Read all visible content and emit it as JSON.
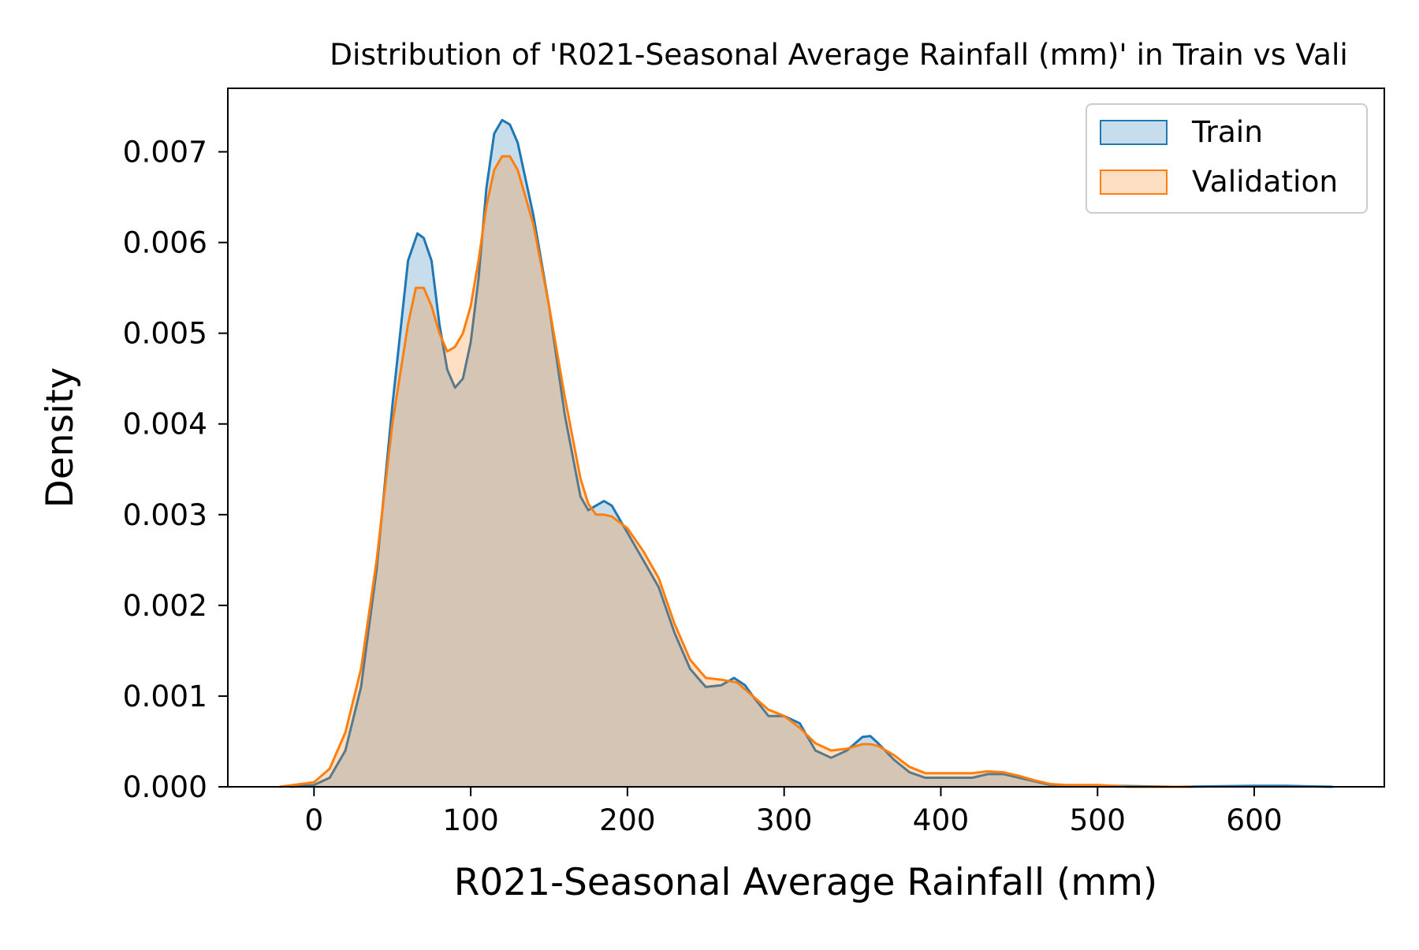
{
  "chart_data": {
    "type": "area",
    "title": "Distribution of 'R021-Seasonal Average Rainfall (mm)' in Train vs Vali",
    "xlabel": "R021-Seasonal Average Rainfall (mm)",
    "ylabel": "Density",
    "xlim": [
      -55,
      683
    ],
    "ylim": [
      0,
      0.0077
    ],
    "x_ticks": [
      0,
      100,
      200,
      300,
      400,
      500,
      600
    ],
    "y_ticks": [
      0.0,
      0.001,
      0.002,
      0.003,
      0.004,
      0.005,
      0.006,
      0.007
    ],
    "y_tick_labels": [
      "0.000",
      "0.001",
      "0.002",
      "0.003",
      "0.004",
      "0.005",
      "0.006",
      "0.007"
    ],
    "grid": false,
    "legend_position": "top-right",
    "series": [
      {
        "name": "Train",
        "color": "#1f77b4",
        "fill_opacity": 0.25,
        "points": [
          [
            -15,
            0.0
          ],
          [
            0,
            2e-05
          ],
          [
            10,
            0.0001
          ],
          [
            20,
            0.0004
          ],
          [
            30,
            0.0011
          ],
          [
            40,
            0.0024
          ],
          [
            50,
            0.0042
          ],
          [
            60,
            0.0058
          ],
          [
            66,
            0.0061
          ],
          [
            70,
            0.00605
          ],
          [
            75,
            0.0058
          ],
          [
            80,
            0.0051
          ],
          [
            85,
            0.0046
          ],
          [
            90,
            0.0044
          ],
          [
            95,
            0.0045
          ],
          [
            100,
            0.0049
          ],
          [
            105,
            0.0056
          ],
          [
            110,
            0.0066
          ],
          [
            115,
            0.0072
          ],
          [
            120,
            0.00735
          ],
          [
            125,
            0.0073
          ],
          [
            130,
            0.0071
          ],
          [
            140,
            0.0063
          ],
          [
            150,
            0.0053
          ],
          [
            160,
            0.0041
          ],
          [
            170,
            0.0032
          ],
          [
            175,
            0.00305
          ],
          [
            180,
            0.0031
          ],
          [
            185,
            0.00315
          ],
          [
            190,
            0.0031
          ],
          [
            200,
            0.0028
          ],
          [
            210,
            0.0025
          ],
          [
            220,
            0.0022
          ],
          [
            230,
            0.0017
          ],
          [
            240,
            0.0013
          ],
          [
            250,
            0.0011
          ],
          [
            260,
            0.00112
          ],
          [
            268,
            0.0012
          ],
          [
            275,
            0.00112
          ],
          [
            280,
            0.001
          ],
          [
            290,
            0.00078
          ],
          [
            300,
            0.00078
          ],
          [
            310,
            0.0007
          ],
          [
            320,
            0.0004
          ],
          [
            330,
            0.00032
          ],
          [
            340,
            0.0004
          ],
          [
            350,
            0.00055
          ],
          [
            355,
            0.00056
          ],
          [
            360,
            0.00048
          ],
          [
            370,
            0.0003
          ],
          [
            380,
            0.00016
          ],
          [
            390,
            0.0001
          ],
          [
            400,
            0.0001
          ],
          [
            410,
            0.0001
          ],
          [
            420,
            0.0001
          ],
          [
            430,
            0.00014
          ],
          [
            440,
            0.00014
          ],
          [
            450,
            0.0001
          ],
          [
            460,
            6e-05
          ],
          [
            470,
            2e-05
          ],
          [
            490,
            1e-05
          ],
          [
            510,
            1e-05
          ],
          [
            550,
            0.0
          ],
          [
            600,
            1e-05
          ],
          [
            620,
            1e-05
          ],
          [
            650,
            0.0
          ]
        ]
      },
      {
        "name": "Validation",
        "color": "#ff7f0e",
        "fill_opacity": 0.25,
        "points": [
          [
            -22,
            0.0
          ],
          [
            0,
            5e-05
          ],
          [
            10,
            0.0002
          ],
          [
            20,
            0.0006
          ],
          [
            30,
            0.0013
          ],
          [
            40,
            0.0025
          ],
          [
            50,
            0.004
          ],
          [
            60,
            0.0051
          ],
          [
            65,
            0.0055
          ],
          [
            70,
            0.0055
          ],
          [
            75,
            0.0053
          ],
          [
            80,
            0.005
          ],
          [
            85,
            0.0048
          ],
          [
            90,
            0.00485
          ],
          [
            95,
            0.005
          ],
          [
            100,
            0.0053
          ],
          [
            105,
            0.0058
          ],
          [
            110,
            0.0064
          ],
          [
            115,
            0.0068
          ],
          [
            120,
            0.00695
          ],
          [
            125,
            0.00695
          ],
          [
            130,
            0.0068
          ],
          [
            140,
            0.0062
          ],
          [
            150,
            0.0053
          ],
          [
            160,
            0.0043
          ],
          [
            170,
            0.0034
          ],
          [
            175,
            0.00312
          ],
          [
            180,
            0.003
          ],
          [
            185,
            0.003
          ],
          [
            190,
            0.00298
          ],
          [
            200,
            0.00285
          ],
          [
            210,
            0.0026
          ],
          [
            220,
            0.0023
          ],
          [
            230,
            0.0018
          ],
          [
            240,
            0.0014
          ],
          [
            250,
            0.0012
          ],
          [
            260,
            0.00118
          ],
          [
            270,
            0.00115
          ],
          [
            280,
            0.001
          ],
          [
            290,
            0.00085
          ],
          [
            300,
            0.00078
          ],
          [
            310,
            0.00065
          ],
          [
            320,
            0.00048
          ],
          [
            330,
            0.0004
          ],
          [
            340,
            0.00042
          ],
          [
            350,
            0.00047
          ],
          [
            355,
            0.00047
          ],
          [
            360,
            0.00045
          ],
          [
            370,
            0.00035
          ],
          [
            380,
            0.00022
          ],
          [
            390,
            0.00015
          ],
          [
            400,
            0.00015
          ],
          [
            410,
            0.00015
          ],
          [
            420,
            0.00015
          ],
          [
            430,
            0.00017
          ],
          [
            440,
            0.00016
          ],
          [
            450,
            0.00012
          ],
          [
            460,
            7e-05
          ],
          [
            470,
            3e-05
          ],
          [
            480,
            2e-05
          ],
          [
            490,
            2e-05
          ],
          [
            500,
            2e-05
          ],
          [
            510,
            1e-05
          ],
          [
            520,
            0.0
          ],
          [
            560,
            0.0
          ]
        ]
      }
    ]
  }
}
